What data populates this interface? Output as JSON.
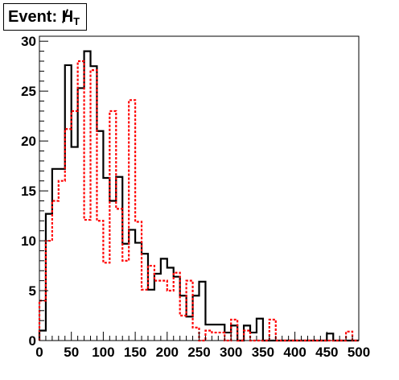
{
  "chart_data": {
    "type": "histogram",
    "title": {
      "prefix": "Event: ",
      "symbol": "H",
      "subscript": "T"
    },
    "xlim": [
      0,
      500
    ],
    "ylim": [
      0,
      30.5
    ],
    "x_ticks": [
      0,
      50,
      100,
      150,
      200,
      250,
      300,
      350,
      400,
      450,
      500
    ],
    "y_ticks": [
      0,
      5,
      10,
      15,
      20,
      25,
      30
    ],
    "bin_width": 10,
    "bin_edges_start": 0,
    "grid": false,
    "series": [
      {
        "style": "solid",
        "color": "#000000",
        "values": [
          1,
          12.7,
          17.2,
          17.2,
          27.6,
          19.4,
          25.3,
          29,
          27.5,
          21,
          16.3,
          14,
          16.4,
          9.7,
          11.1,
          9.8,
          8.7,
          5.1,
          6.7,
          8.2,
          7.3,
          6.4,
          4.5,
          2.4,
          4.5,
          5.9,
          1.6,
          1.6,
          1.6,
          0.8,
          1.5,
          0,
          1.5,
          0.8,
          2.2,
          0,
          0,
          0,
          0,
          0,
          0,
          0,
          0,
          0,
          0,
          0.7,
          0,
          0,
          0,
          0
        ]
      },
      {
        "style": "dashed",
        "color": "#ff0000",
        "values": [
          4,
          10,
          14,
          16,
          21.2,
          23,
          28,
          12.1,
          27.1,
          12,
          7.8,
          23,
          13.2,
          8,
          24.1,
          11.9,
          5.1,
          7.5,
          6,
          6,
          5,
          6.8,
          2.5,
          6,
          1.3,
          0,
          1,
          0.8,
          0.8,
          0,
          2.1,
          0,
          1,
          0,
          0,
          0,
          2.1,
          0,
          0,
          0,
          0,
          0,
          0,
          0,
          0,
          0,
          0,
          0,
          0.9,
          0
        ]
      }
    ]
  }
}
